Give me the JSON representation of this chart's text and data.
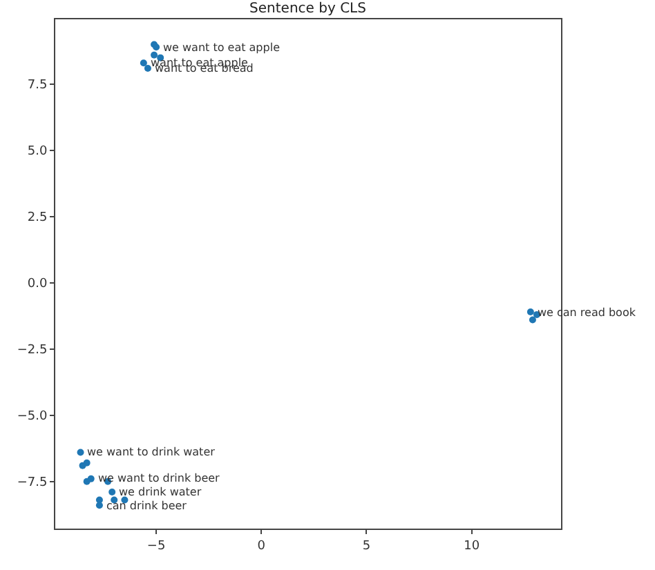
{
  "chart_data": {
    "type": "scatter",
    "title": "Sentence by CLS",
    "x": [
      -5.1,
      -5.0,
      -5.1,
      -4.8,
      -5.6,
      -5.4,
      12.8,
      12.9,
      13.1,
      -8.6,
      -8.5,
      -8.3,
      -8.3,
      -8.1,
      -7.3,
      -7.1,
      -7.0,
      -7.7,
      -7.7,
      -6.5
    ],
    "series": [
      {
        "color": "#1f77b4",
        "values": [
          9.0,
          8.9,
          8.6,
          8.5,
          8.3,
          8.1,
          -1.1,
          -1.4,
          -1.2,
          -6.4,
          -6.9,
          -6.8,
          -7.5,
          -7.4,
          -7.5,
          -7.9,
          -8.2,
          -8.2,
          -8.4,
          -8.2
        ]
      }
    ],
    "marker": "circle",
    "xlim": [
      -9.8,
      14.25
    ],
    "ylim": [
      -9.28,
      9.95
    ],
    "xticks": [
      {
        "value": -5,
        "label": "−5"
      },
      0,
      5,
      10
    ],
    "yticks": [
      {
        "value": -7.5,
        "label": "−7.5"
      },
      {
        "value": -5,
        "label": "−5.0"
      },
      {
        "value": -2.5,
        "label": "−2.5"
      },
      {
        "value": 0,
        "label": "0.0"
      },
      {
        "value": 2.5,
        "label": "2.5"
      },
      {
        "value": 5,
        "label": "5.0"
      },
      {
        "value": 7.5,
        "label": "7.5"
      }
    ],
    "annotations": [
      {
        "text": "we want to eat apple",
        "x": -5.0,
        "y": 8.9
      },
      {
        "text": "want to eat apple",
        "x": -5.6,
        "y": 8.3
      },
      {
        "text": "want to eat bread",
        "x": -5.4,
        "y": 8.1
      },
      {
        "text": "we can read book",
        "x": 12.8,
        "y": -1.1
      },
      {
        "text": "we want to drink water",
        "x": -8.6,
        "y": -6.4
      },
      {
        "text": "we want to drink beer",
        "x": -8.1,
        "y": -7.4
      },
      {
        "text": "we drink water",
        "x": -7.1,
        "y": -7.9
      },
      {
        "text": "can drink beer",
        "x": -7.7,
        "y": -8.4
      }
    ]
  }
}
